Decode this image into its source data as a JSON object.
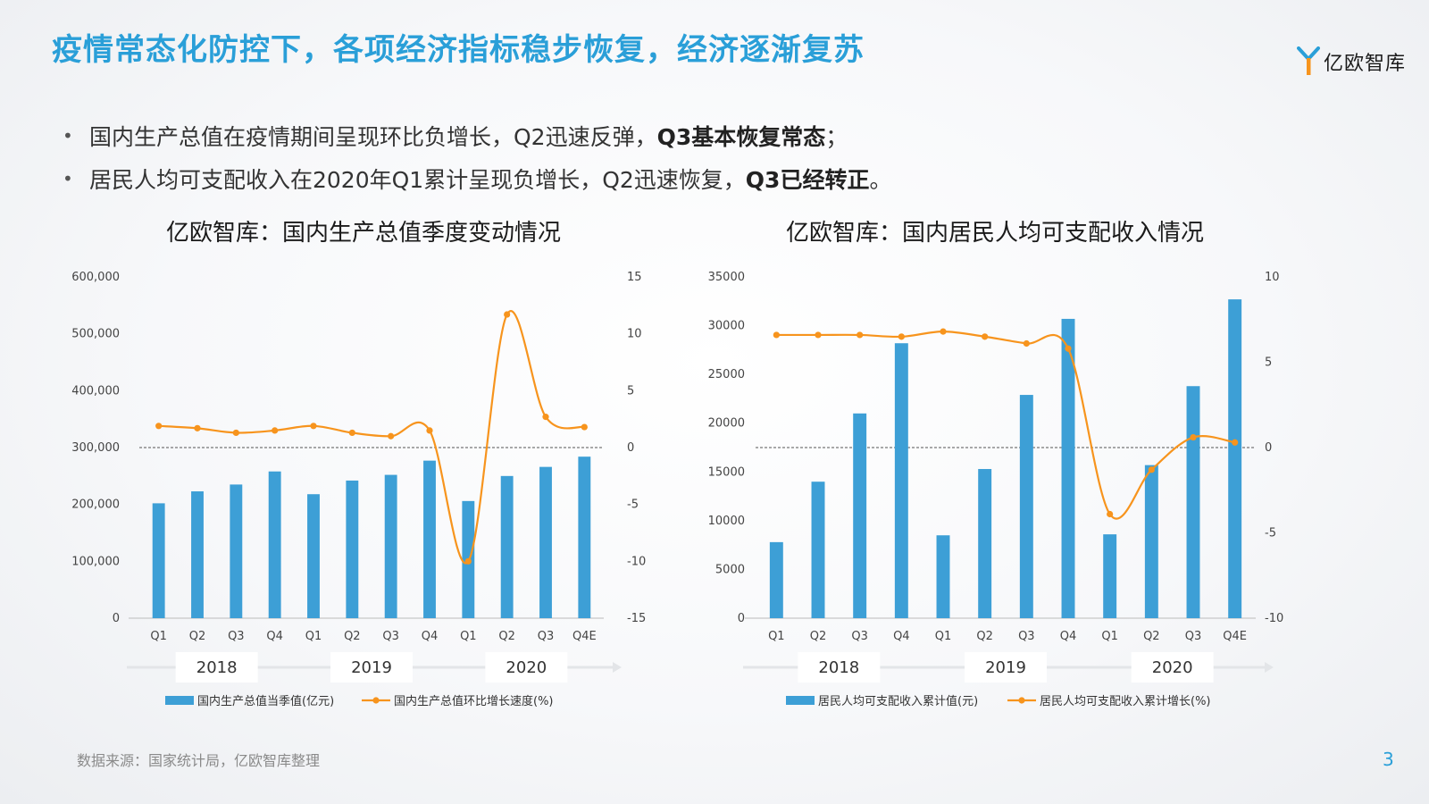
{
  "title": "疫情常态化防控下，各项经济指标稳步恢复，经济逐渐复苏",
  "logo": {
    "text": "亿欧智库",
    "icon": "yiou-logo-icon",
    "color": "#2a9fd8"
  },
  "bullets": [
    {
      "text": "国内生产总值在疫情期间呈现环比负增长，Q2迅速反弹，",
      "bold": "Q3基本恢复常态",
      "tail": "；"
    },
    {
      "text": "居民人均可支配收入在2020年Q1累计呈现负增长，Q2迅速恢复，",
      "bold": "Q3已经转正",
      "tail": "。"
    }
  ],
  "source": "数据来源：国家统计局，亿欧智库整理",
  "page_number": "3",
  "colors": {
    "bar": "#3d9fd6",
    "line": "#f7941d",
    "title": "#2a9fd8"
  },
  "chart_data": [
    {
      "type": "bar",
      "title": "亿欧智库：国内生产总值季度变动情况",
      "categories": [
        "Q1",
        "Q2",
        "Q3",
        "Q4",
        "Q1",
        "Q2",
        "Q3",
        "Q4",
        "Q1",
        "Q2",
        "Q3",
        "Q4E"
      ],
      "groups": [
        {
          "label": "2018",
          "count": 4
        },
        {
          "label": "2019",
          "count": 4
        },
        {
          "label": "2020",
          "count": 4
        }
      ],
      "left_axis": {
        "min": 0,
        "max": 600000,
        "ticks": [
          "0",
          "100,000",
          "200,000",
          "300,000",
          "400,000",
          "500,000",
          "600,000"
        ]
      },
      "right_axis": {
        "min": -15,
        "max": 15,
        "ticks": [
          "-15",
          "-10",
          "-5",
          "0",
          "5",
          "10",
          "15"
        ]
      },
      "series": [
        {
          "name": "国内生产总值当季值(亿元)",
          "kind": "bar",
          "axis": "left",
          "values": [
            202000,
            223000,
            235000,
            258000,
            218000,
            242000,
            252000,
            277000,
            206000,
            250000,
            266000,
            284000
          ]
        },
        {
          "name": "国内生产总值环比增长速度(%)",
          "kind": "line",
          "axis": "right",
          "values": [
            1.9,
            1.7,
            1.3,
            1.5,
            1.9,
            1.3,
            1.0,
            1.5,
            -10.0,
            11.7,
            2.7,
            1.8
          ]
        }
      ]
    },
    {
      "type": "bar",
      "title": "亿欧智库：国内居民人均可支配收入情况",
      "categories": [
        "Q1",
        "Q2",
        "Q3",
        "Q4",
        "Q1",
        "Q2",
        "Q3",
        "Q4",
        "Q1",
        "Q2",
        "Q3",
        "Q4E"
      ],
      "groups": [
        {
          "label": "2018",
          "count": 4
        },
        {
          "label": "2019",
          "count": 4
        },
        {
          "label": "2020",
          "count": 4
        }
      ],
      "left_axis": {
        "min": 0,
        "max": 35000,
        "ticks": [
          "0",
          "5000",
          "10000",
          "15000",
          "20000",
          "25000",
          "30000",
          "35000"
        ]
      },
      "right_axis": {
        "min": -10,
        "max": 10,
        "ticks": [
          "-10",
          "-5",
          "0",
          "5",
          "10"
        ]
      },
      "series": [
        {
          "name": "居民人均可支配收入累计值(元)",
          "kind": "bar",
          "axis": "left",
          "values": [
            7800,
            14000,
            21000,
            28200,
            8500,
            15300,
            22900,
            30700,
            8600,
            15700,
            23800,
            32700
          ]
        },
        {
          "name": "居民人均可支配收入累计增长(%)",
          "kind": "line",
          "axis": "right",
          "values": [
            6.6,
            6.6,
            6.6,
            6.5,
            6.8,
            6.5,
            6.1,
            5.8,
            -3.9,
            -1.3,
            0.6,
            0.3
          ]
        }
      ]
    }
  ]
}
